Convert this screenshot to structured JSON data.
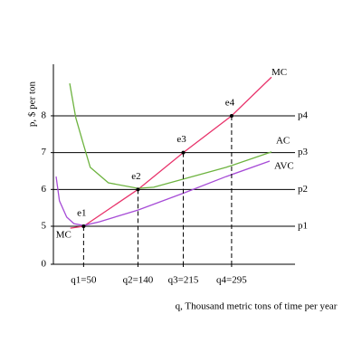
{
  "chart_data": {
    "type": "line",
    "xlabel": "q, Thousand metric tons of time per year",
    "ylabel": "p, $ per ton",
    "xlim": [
      0,
      400
    ],
    "ylim": [
      0,
      9.4
    ],
    "y_break": [
      0,
      5
    ],
    "yticks": [
      0,
      5,
      6,
      7,
      8
    ],
    "xticks": [
      {
        "value": 50,
        "label": "q1=50"
      },
      {
        "value": 140,
        "label": "q2=140"
      },
      {
        "value": 215,
        "label": "q3=215"
      },
      {
        "value": 295,
        "label": "q4=295"
      }
    ],
    "price_lines": [
      {
        "label": "p1",
        "value": 5
      },
      {
        "label": "p2",
        "value": 6
      },
      {
        "label": "p3",
        "value": 7
      },
      {
        "label": "p4",
        "value": 8
      }
    ],
    "points": [
      {
        "label": "e1",
        "x": 50,
        "y": 5
      },
      {
        "label": "e2",
        "x": 140,
        "y": 6
      },
      {
        "label": "e3",
        "x": 215,
        "y": 7
      },
      {
        "label": "e4",
        "x": 295,
        "y": 8
      }
    ],
    "series": [
      {
        "name": "MC",
        "color": "#e8336b",
        "x": [
          28,
          50,
          140,
          215,
          295,
          361
        ],
        "values": [
          4.75,
          5,
          6,
          7,
          8,
          9.05
        ]
      },
      {
        "name": "AC",
        "color": "#6db33f",
        "x": [
          27,
          37,
          50,
          61,
          91,
          140,
          166,
          286,
          361
        ],
        "values": [
          8.88,
          7.95,
          7.21,
          6.6,
          6.18,
          6.03,
          6.06,
          6.6,
          7.02
        ]
      },
      {
        "name": "AVC",
        "color": "#a64bd6",
        "x": [
          4.5,
          10,
          22,
          34,
          50,
          76,
          140,
          217,
          286,
          358
        ],
        "values": [
          6.35,
          5.69,
          5.25,
          5.07,
          5.02,
          5.12,
          5.44,
          5.91,
          6.35,
          6.77
        ]
      }
    ]
  }
}
